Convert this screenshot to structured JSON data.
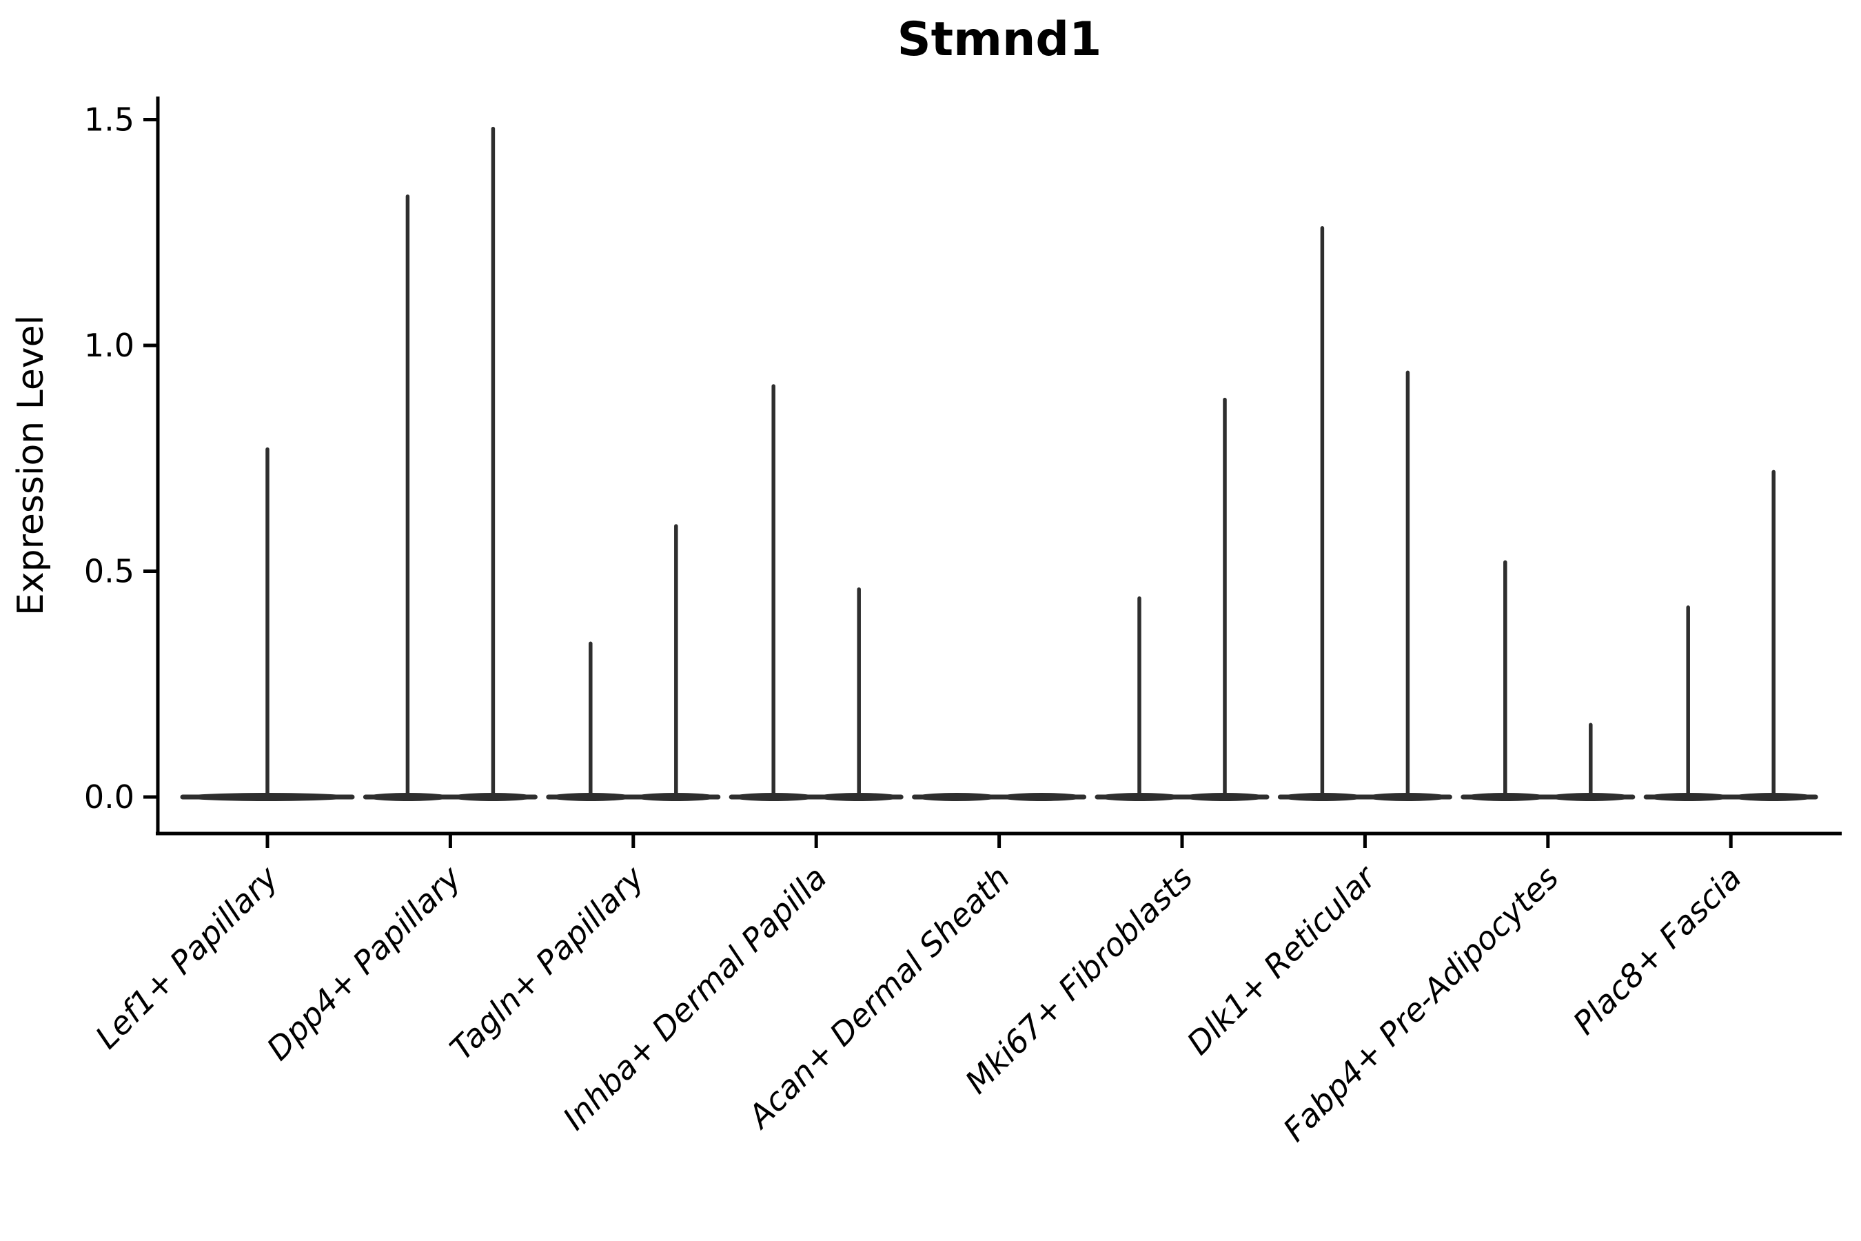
{
  "chart_data": {
    "type": "violin",
    "title": "Stmnd1",
    "ylabel": "Expression Level",
    "xlabel": "",
    "ylim": [
      0,
      1.5
    ],
    "ytick_values": [
      0.0,
      0.5,
      1.0,
      1.5
    ],
    "ytick_labels": [
      "0.0",
      "0.5",
      "1.0",
      "1.5"
    ],
    "grid": false,
    "legend": false,
    "style": {
      "background": "#ffffff",
      "axis_color": "#000000",
      "violin_color": "#2e2e2e"
    },
    "categories": [
      {
        "label": "Lef1+ Papillary",
        "violin_max": [
          0.77
        ]
      },
      {
        "label": "Dpp4+ Papillary",
        "violin_max": [
          1.33,
          1.48
        ]
      },
      {
        "label": "Tagln+ Papillary",
        "violin_max": [
          0.34,
          0.6
        ]
      },
      {
        "label": "Inhba+ Dermal Papilla",
        "violin_max": [
          0.91,
          0.46
        ]
      },
      {
        "label": "Acan+ Dermal Sheath",
        "violin_max": []
      },
      {
        "label": "Mki67+ Fibroblasts",
        "violin_max": [
          0.44,
          0.88
        ]
      },
      {
        "label": "Dlk1+ Reticular",
        "violin_max": [
          1.26,
          0.94
        ]
      },
      {
        "label": "Fabp4+ Pre-Adipocytes",
        "violin_max": [
          0.52,
          0.16
        ]
      },
      {
        "label": "Plac8+ Fascia",
        "violin_max": [
          0.42,
          0.72
        ]
      }
    ]
  }
}
